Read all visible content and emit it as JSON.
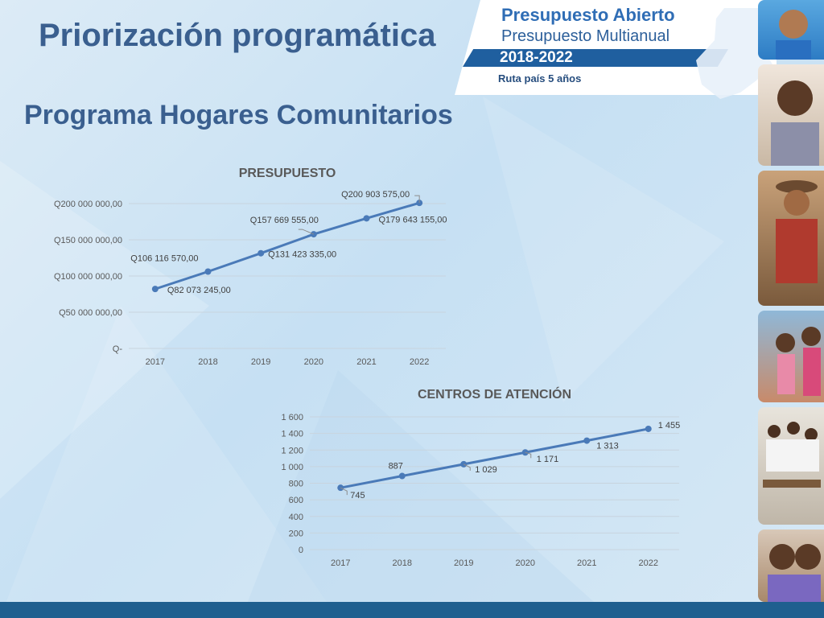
{
  "page": {
    "title": "Priorización programática",
    "subtitle": "Programa Hogares Comunitarios"
  },
  "banner": {
    "line1": "Presupuesto Abierto",
    "line2": "Presupuesto Multianual",
    "years": "2018-2022",
    "route": "Ruta país 5 años"
  },
  "colors": {
    "series": "#4a7ab8",
    "title_text": "#3a5f8f",
    "bottom_bar": "#1f5f8f",
    "banner_blue": "#1f5f9f"
  },
  "chart_data": [
    {
      "type": "line",
      "title": "PRESUPUESTO",
      "x": [
        "2017",
        "2018",
        "2019",
        "2020",
        "2021",
        "2022"
      ],
      "values": [
        82073245,
        106116570,
        131423335,
        157669555,
        179643155,
        200903575
      ],
      "value_labels": [
        "Q82 073 245,00",
        "Q106 116 570,00",
        "Q131 423 335,00",
        "Q157 669 555,00",
        "Q179 643 155,00",
        "Q200 903 575,00"
      ],
      "ylim": [
        0,
        200000000
      ],
      "yticks": [
        0,
        50000000,
        100000000,
        150000000,
        200000000
      ],
      "ytick_labels": [
        "Q-",
        "Q50 000 000,00",
        "Q100 000 000,00",
        "Q150 000 000,00",
        "Q200 000 000,00"
      ],
      "grid": true
    },
    {
      "type": "line",
      "title": "CENTROS DE ATENCIÓN",
      "x": [
        "2017",
        "2018",
        "2019",
        "2020",
        "2021",
        "2022"
      ],
      "values": [
        745,
        887,
        1029,
        1171,
        1313,
        1455
      ],
      "value_labels": [
        "745",
        "887",
        "1 029",
        "1 171",
        "1 313",
        "1 455"
      ],
      "ylim": [
        0,
        1600
      ],
      "yticks": [
        0,
        200,
        400,
        600,
        800,
        1000,
        1200,
        1400,
        1600
      ],
      "ytick_labels": [
        "0",
        "200",
        "400",
        "600",
        "800",
        "1 000",
        "1 200",
        "1 400",
        "1 600"
      ],
      "grid": true
    }
  ]
}
